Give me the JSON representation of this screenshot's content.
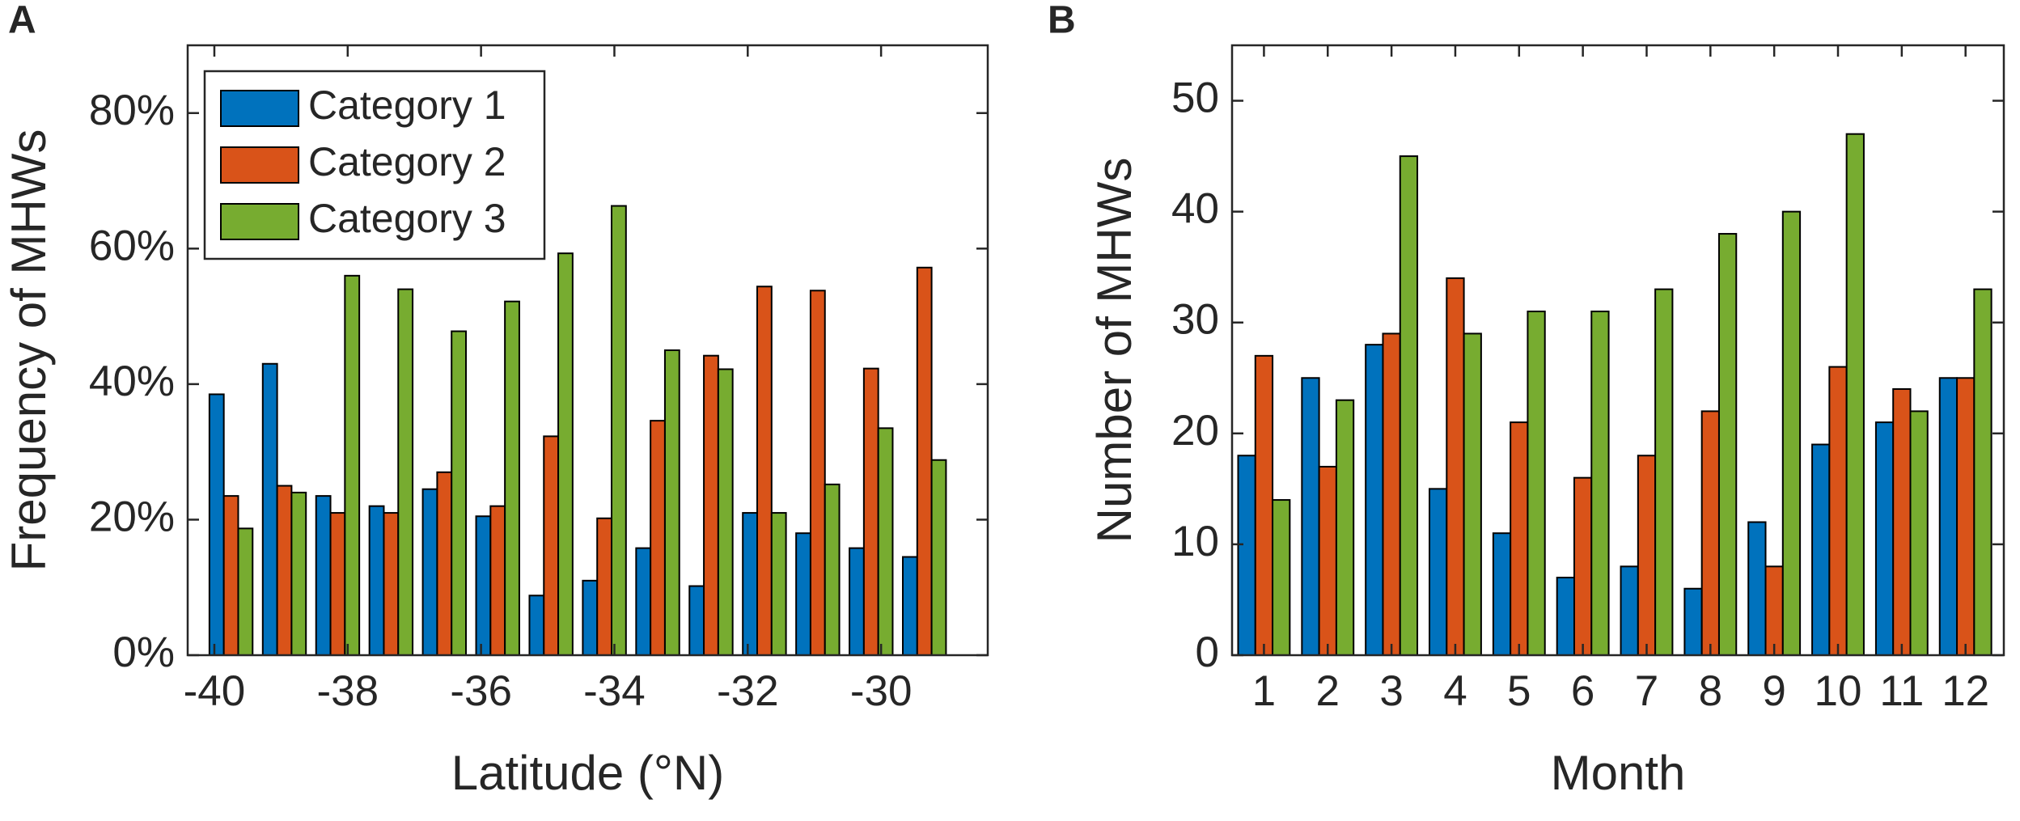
{
  "chart_data": [
    {
      "type": "bar",
      "panel_label": "A",
      "xlabel": "Latitude (°N)",
      "ylabel": "Frequency of MHWs",
      "legend": "upper left",
      "x": [
        -39.75,
        -38.95,
        -38.15,
        -37.35,
        -36.55,
        -35.75,
        -34.95,
        -34.15,
        -33.35,
        -32.55,
        -31.75,
        -30.95,
        -30.15,
        -29.35
      ],
      "series": [
        {
          "name": "Category 1",
          "color": "#0072bd",
          "values": [
            38.5,
            43,
            23.5,
            22,
            24.5,
            20.5,
            8.8,
            11,
            15.8,
            10.2,
            21,
            18,
            15.8,
            14.5
          ]
        },
        {
          "name": "Category 2",
          "color": "#d95319",
          "values": [
            23.5,
            25,
            21,
            21,
            27,
            22,
            32.3,
            20.2,
            34.6,
            44.2,
            54.4,
            53.8,
            42.3,
            57.2
          ]
        },
        {
          "name": "Category 3",
          "color": "#77ac30",
          "values": [
            18.7,
            24,
            56,
            54,
            47.8,
            52.2,
            59.3,
            66.3,
            45,
            42.2,
            21,
            25.2,
            33.5,
            28.8
          ]
        }
      ],
      "xlim": [
        -40.4,
        -28.4
      ],
      "xticks": [
        -40,
        -38,
        -36,
        -34,
        -32,
        -30
      ],
      "ylim": [
        0,
        90
      ],
      "yticks": [
        {
          "value": 0,
          "label": "0%"
        },
        {
          "value": 20,
          "label": "20%"
        },
        {
          "value": 40,
          "label": "40%"
        },
        {
          "value": 60,
          "label": "60%"
        },
        {
          "value": 80,
          "label": "80%"
        }
      ]
    },
    {
      "type": "bar",
      "panel_label": "B",
      "xlabel": "Month",
      "ylabel": "Number of MHWs",
      "x": [
        1,
        2,
        3,
        4,
        5,
        6,
        7,
        8,
        9,
        10,
        11,
        12
      ],
      "series": [
        {
          "color": "#0072bd",
          "values": [
            18,
            25,
            28,
            15,
            11,
            7,
            8,
            6,
            12,
            19,
            21,
            25
          ]
        },
        {
          "color": "#d95319",
          "values": [
            27,
            17,
            29,
            34,
            21,
            16,
            18,
            22,
            8,
            26,
            24,
            25
          ]
        },
        {
          "color": "#77ac30",
          "values": [
            14,
            23,
            45,
            29,
            31,
            31,
            33,
            38,
            40,
            47,
            22,
            33
          ]
        }
      ],
      "xlim": [
        0.5,
        12.6
      ],
      "xticks": [
        1,
        2,
        3,
        4,
        5,
        6,
        7,
        8,
        9,
        10,
        11,
        12
      ],
      "ylim": [
        0,
        55
      ],
      "yticks": [
        0,
        10,
        20,
        30,
        40,
        50
      ]
    }
  ]
}
